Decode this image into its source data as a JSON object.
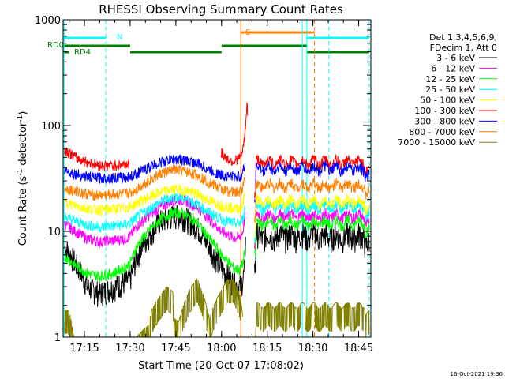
{
  "chart_data": {
    "type": "line",
    "title": "RHESSI Observing Summary Count Rates",
    "xlabel": "Start Time (20-Oct-07 17:08:02)",
    "ylabel_main": "Count Rate (s",
    "ylabel_sup1": "-1",
    "ylabel_mid": " detector",
    "ylabel_sup2": "-1",
    "ylabel_end": ")",
    "footer": "16-Oct-2021 19:36",
    "x_range_min": [
      0,
      101
    ],
    "y_log": true,
    "ylim": [
      1,
      1000
    ],
    "x_ticks": [
      {
        "t": 7,
        "label": "17:15"
      },
      {
        "t": 22,
        "label": "17:30"
      },
      {
        "t": 37,
        "label": "17:45"
      },
      {
        "t": 52,
        "label": "18:00"
      },
      {
        "t": 67,
        "label": "18:15"
      },
      {
        "t": 82,
        "label": "18:30"
      },
      {
        "t": 97,
        "label": "18:45"
      }
    ],
    "y_ticks": [
      {
        "v": 1,
        "label": "1"
      },
      {
        "v": 10,
        "label": "10"
      },
      {
        "v": 100,
        "label": "100"
      },
      {
        "v": 1000,
        "label": "1000"
      }
    ],
    "legend": {
      "header1": "Det 1,3,4,5,6,9,",
      "header2": "FDecim 1, Att 0"
    },
    "series": [
      {
        "name": "3 - 6 keV",
        "color": "#000000",
        "x": [
          0,
          4,
          8,
          12,
          16,
          20,
          22,
          24,
          28,
          32,
          36,
          38,
          40,
          44,
          48,
          52,
          56,
          58,
          59,
          59.7,
          60,
          61,
          63
        ],
        "y": [
          7.5,
          5,
          3,
          2.6,
          2.9,
          3.3,
          3.5,
          5.5,
          9,
          12.5,
          14,
          14,
          13.5,
          11,
          7,
          4.5,
          3.2,
          3,
          3.5,
          4.5,
          14,
          null,
          null
        ]
      },
      {
        "name": "6 - 12 keV",
        "color": "#ff00ff",
        "x": [
          0,
          4,
          8,
          12,
          16,
          20,
          22,
          24,
          28,
          32,
          36,
          38,
          40,
          44,
          48,
          52,
          56,
          58,
          59,
          59.7
        ],
        "y": [
          12,
          10,
          8.5,
          8,
          8.2,
          8.5,
          9,
          11,
          14,
          17,
          19.5,
          20,
          19.5,
          17,
          13,
          10,
          8.7,
          8.8,
          10,
          14
        ]
      },
      {
        "name": "12 - 25 keV",
        "color": "#00ff00",
        "x": [
          0,
          4,
          8,
          12,
          16,
          20,
          22,
          24,
          28,
          32,
          36,
          38,
          40,
          44,
          48,
          52,
          56,
          58,
          59,
          59.7
        ],
        "y": [
          6,
          4.8,
          4,
          3.8,
          4,
          4.5,
          5,
          7,
          10,
          13,
          15,
          15,
          14.5,
          12,
          8.5,
          6,
          4.5,
          4.3,
          5,
          7
        ]
      },
      {
        "name": "25 - 50 keV",
        "color": "#00ffff",
        "x": [
          0,
          4,
          8,
          12,
          16,
          20,
          22,
          24,
          28,
          32,
          36,
          38,
          40,
          44,
          48,
          52,
          56,
          58,
          59,
          59.7
        ],
        "y": [
          14,
          12.5,
          11.5,
          11,
          11.3,
          11.6,
          12,
          13.5,
          16,
          19,
          21,
          21,
          20.5,
          18,
          15,
          13,
          12,
          12,
          13,
          17
        ]
      },
      {
        "name": "50 - 100 keV",
        "color": "#ffff00",
        "x": [
          0,
          4,
          8,
          12,
          16,
          20,
          22,
          24,
          28,
          32,
          36,
          38,
          40,
          44,
          48,
          52,
          56,
          58,
          59,
          59.7
        ],
        "y": [
          19,
          17.5,
          16.5,
          16,
          16.3,
          16.6,
          17,
          18.5,
          21,
          23.5,
          25,
          25,
          24.5,
          22.5,
          19.5,
          17.5,
          16.5,
          16.5,
          18,
          23
        ]
      },
      {
        "name": "100 - 300 keV",
        "color": "#ff0000",
        "x": [
          0,
          2,
          4,
          8,
          12,
          16,
          20,
          22,
          52,
          54,
          56,
          58,
          59,
          59.5,
          60,
          60.3,
          60.6
        ],
        "y": [
          62,
          55,
          50,
          45,
          42,
          42,
          43,
          44,
          55,
          48,
          46,
          50,
          58,
          75,
          110,
          165,
          120
        ]
      },
      {
        "name": "300 - 800 keV",
        "color": "#0000ff",
        "x": [
          0,
          4,
          8,
          12,
          16,
          20,
          22,
          24,
          28,
          32,
          36,
          38,
          40,
          44,
          48,
          52,
          56,
          58,
          59,
          59.7
        ],
        "y": [
          38,
          35,
          33,
          32,
          32,
          32.5,
          33,
          35,
          40,
          45,
          48,
          48,
          47,
          44,
          38,
          34,
          33,
          33,
          36,
          44
        ]
      },
      {
        "name": "800 - 7000 keV",
        "color": "#ff8000",
        "x": [
          0,
          4,
          8,
          12,
          16,
          20,
          22,
          24,
          28,
          32,
          36,
          38,
          40,
          44,
          48,
          52,
          56,
          58,
          59,
          59.7
        ],
        "y": [
          26,
          24,
          22.5,
          22,
          22.3,
          22.6,
          23,
          25,
          30,
          35,
          38,
          38,
          37,
          34,
          29,
          25,
          23.5,
          23.5,
          26,
          34
        ]
      },
      {
        "name": "7000 - 15000 keV",
        "color": "#808000",
        "x": [
          0,
          2,
          3,
          3.5,
          4,
          16,
          20,
          24,
          28,
          29,
          32,
          34,
          36,
          36.5,
          38,
          42,
          44,
          46,
          48,
          52,
          54,
          56,
          58,
          59
        ],
        "y": [
          1.8,
          1.8,
          1.2,
          1,
          1,
          1,
          1,
          1,
          1.3,
          1.8,
          2.5,
          3,
          2.7,
          1.5,
          1.4,
          3,
          3.6,
          2.5,
          1.5,
          2.8,
          3.5,
          3.5,
          2.5,
          1.5
        ]
      }
    ],
    "flags": [
      {
        "label": "RD0",
        "color": "#008000"
      },
      {
        "label": "RD4",
        "color": "#008000"
      },
      {
        "label": "N",
        "color": "#00ffff"
      },
      {
        "label": "S",
        "color": "#ff8000"
      }
    ]
  }
}
